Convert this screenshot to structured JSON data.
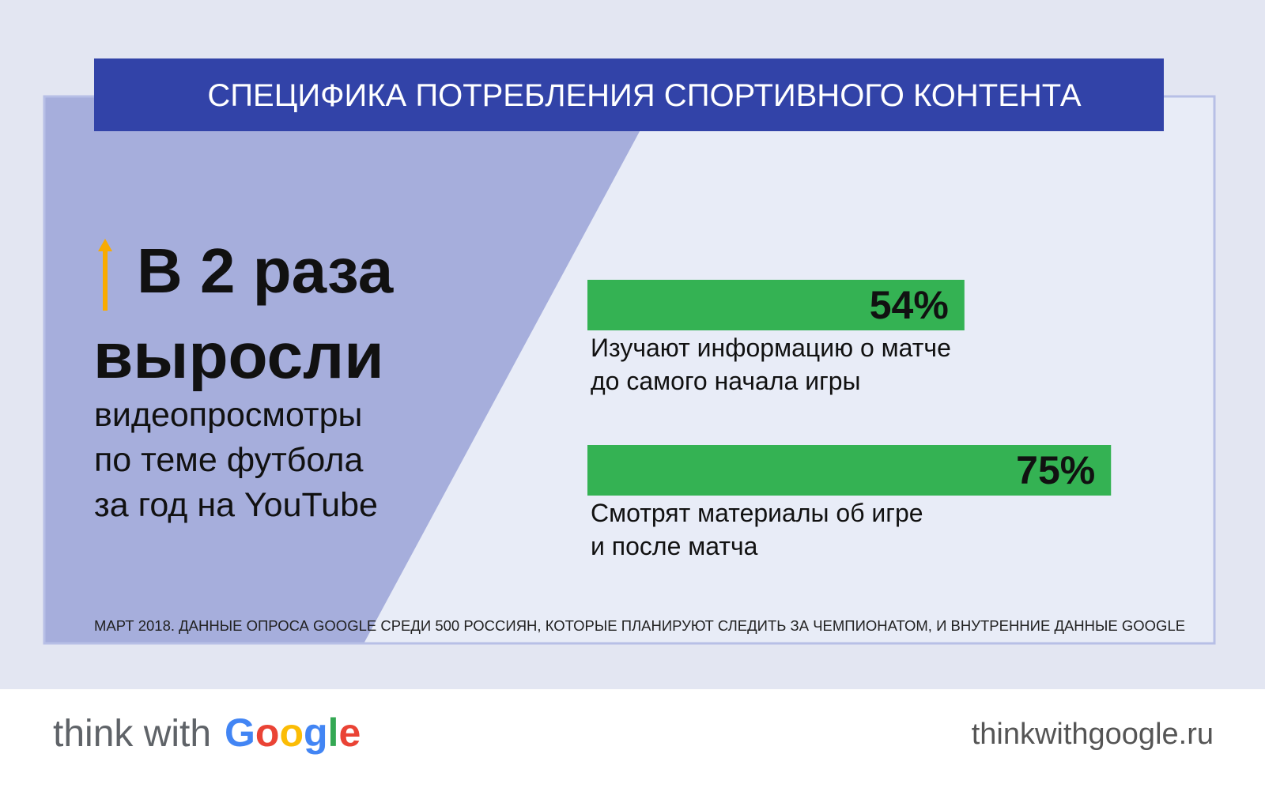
{
  "header": {
    "title": "СПЕЦИФИКА ПОТРЕБЛЕНИЯ СПОРТИВНОГО КОНТЕНТА"
  },
  "highlight": {
    "headline": "В 2 раза",
    "subhead": "выросли",
    "description": [
      "видеопросмотры",
      "по теме футбола",
      "за год на YouTube"
    ]
  },
  "chart_data": {
    "type": "bar",
    "orientation": "horizontal",
    "categories": [
      [
        "Изучают информацию о матче",
        "до самого начала игры"
      ],
      [
        "Смотрят материалы об игре",
        "и после матча"
      ]
    ],
    "values": [
      54,
      75
    ],
    "value_labels": [
      "54%",
      "75%"
    ],
    "xlim": [
      0,
      100
    ],
    "color": "#34b253"
  },
  "source": "МАРТ 2018. ДАННЫЕ ОПРОСА GOOGLE СРЕДИ 500 РОССИЯН, КОТОРЫЕ ПЛАНИРУЮТ СЛЕДИТЬ ЗА ЧЕМПИОНАТОМ, И ВНУТРЕННИЕ ДАННЫЕ GOOGLE",
  "footer": {
    "logo_prefix": "think with",
    "logo_brand": "Google",
    "url": "thinkwithgoogle.ru"
  }
}
